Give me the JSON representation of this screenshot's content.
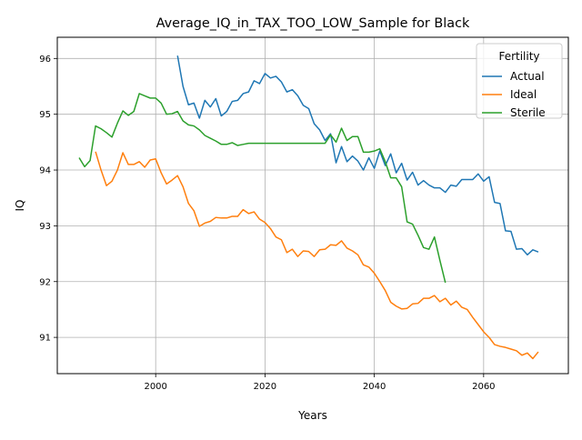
{
  "chart_data": {
    "type": "line",
    "title": "Average_IQ_in_TAX_TOO_LOW_Sample for Black",
    "xlabel": "Years",
    "ylabel": "IQ",
    "xlim": [
      1982,
      2075.5
    ],
    "ylim": [
      90.35,
      96.38
    ],
    "x_ticks": [
      2000,
      2020,
      2040,
      2060
    ],
    "y_ticks": [
      91,
      92,
      93,
      94,
      95,
      96
    ],
    "grid": true,
    "legend": {
      "title": "Fertility",
      "placement": "top-right"
    },
    "series": [
      {
        "name": "Actual",
        "color": "#1f77b4",
        "points": [
          [
            2004,
            96.05
          ],
          [
            2005,
            95.5
          ],
          [
            2006,
            95.17
          ],
          [
            2007,
            95.2
          ],
          [
            2008,
            94.93
          ],
          [
            2009,
            95.25
          ],
          [
            2010,
            95.13
          ],
          [
            2011,
            95.28
          ],
          [
            2012,
            94.97
          ],
          [
            2013,
            95.05
          ],
          [
            2014,
            95.23
          ],
          [
            2015,
            95.25
          ],
          [
            2016,
            95.37
          ],
          [
            2017,
            95.4
          ],
          [
            2018,
            95.6
          ],
          [
            2019,
            95.55
          ],
          [
            2020,
            95.73
          ],
          [
            2021,
            95.65
          ],
          [
            2022,
            95.68
          ],
          [
            2023,
            95.58
          ],
          [
            2024,
            95.4
          ],
          [
            2025,
            95.44
          ],
          [
            2026,
            95.33
          ],
          [
            2027,
            95.16
          ],
          [
            2028,
            95.1
          ],
          [
            2029,
            94.83
          ],
          [
            2030,
            94.72
          ],
          [
            2031,
            94.53
          ],
          [
            2032,
            94.65
          ],
          [
            2033,
            94.13
          ],
          [
            2034,
            94.42
          ],
          [
            2035,
            94.15
          ],
          [
            2036,
            94.25
          ],
          [
            2037,
            94.16
          ],
          [
            2038,
            94.0
          ],
          [
            2039,
            94.22
          ],
          [
            2040,
            94.03
          ],
          [
            2041,
            94.34
          ],
          [
            2042,
            94.08
          ],
          [
            2043,
            94.29
          ],
          [
            2044,
            93.95
          ],
          [
            2045,
            94.12
          ],
          [
            2046,
            93.82
          ],
          [
            2047,
            93.96
          ],
          [
            2048,
            93.73
          ],
          [
            2049,
            93.81
          ],
          [
            2050,
            93.73
          ],
          [
            2051,
            93.68
          ],
          [
            2052,
            93.68
          ],
          [
            2053,
            93.6
          ],
          [
            2054,
            93.73
          ],
          [
            2055,
            93.71
          ],
          [
            2056,
            93.83
          ],
          [
            2057,
            93.83
          ],
          [
            2058,
            93.83
          ],
          [
            2059,
            93.93
          ],
          [
            2060,
            93.8
          ],
          [
            2061,
            93.88
          ],
          [
            2062,
            93.42
          ],
          [
            2063,
            93.4
          ],
          [
            2064,
            92.91
          ],
          [
            2065,
            92.9
          ],
          [
            2066,
            92.58
          ],
          [
            2067,
            92.59
          ],
          [
            2068,
            92.48
          ],
          [
            2069,
            92.57
          ],
          [
            2070,
            92.53
          ]
        ]
      },
      {
        "name": "Ideal",
        "color": "#ff7f0e",
        "points": [
          [
            1989,
            94.33
          ],
          [
            1990,
            94.0
          ],
          [
            1991,
            93.72
          ],
          [
            1992,
            93.8
          ],
          [
            1993,
            94.0
          ],
          [
            1994,
            94.31
          ],
          [
            1995,
            94.1
          ],
          [
            1996,
            94.1
          ],
          [
            1997,
            94.15
          ],
          [
            1998,
            94.05
          ],
          [
            1999,
            94.18
          ],
          [
            2000,
            94.2
          ],
          [
            2001,
            93.95
          ],
          [
            2002,
            93.75
          ],
          [
            2003,
            93.82
          ],
          [
            2004,
            93.9
          ],
          [
            2005,
            93.7
          ],
          [
            2006,
            93.4
          ],
          [
            2007,
            93.27
          ],
          [
            2008,
            92.99
          ],
          [
            2009,
            93.05
          ],
          [
            2010,
            93.08
          ],
          [
            2011,
            93.15
          ],
          [
            2012,
            93.14
          ],
          [
            2013,
            93.14
          ],
          [
            2014,
            93.17
          ],
          [
            2015,
            93.17
          ],
          [
            2016,
            93.29
          ],
          [
            2017,
            93.22
          ],
          [
            2018,
            93.25
          ],
          [
            2019,
            93.12
          ],
          [
            2020,
            93.06
          ],
          [
            2021,
            92.95
          ],
          [
            2022,
            92.8
          ],
          [
            2023,
            92.75
          ],
          [
            2024,
            92.52
          ],
          [
            2025,
            92.58
          ],
          [
            2026,
            92.45
          ],
          [
            2027,
            92.55
          ],
          [
            2028,
            92.54
          ],
          [
            2029,
            92.45
          ],
          [
            2030,
            92.57
          ],
          [
            2031,
            92.58
          ],
          [
            2032,
            92.66
          ],
          [
            2033,
            92.65
          ],
          [
            2034,
            92.73
          ],
          [
            2035,
            92.6
          ],
          [
            2036,
            92.55
          ],
          [
            2037,
            92.48
          ],
          [
            2038,
            92.3
          ],
          [
            2039,
            92.26
          ],
          [
            2040,
            92.15
          ],
          [
            2041,
            92.0
          ],
          [
            2042,
            91.84
          ],
          [
            2043,
            91.63
          ],
          [
            2044,
            91.56
          ],
          [
            2045,
            91.51
          ],
          [
            2046,
            91.52
          ],
          [
            2047,
            91.6
          ],
          [
            2048,
            91.61
          ],
          [
            2049,
            91.7
          ],
          [
            2050,
            91.7
          ],
          [
            2051,
            91.75
          ],
          [
            2052,
            91.64
          ],
          [
            2053,
            91.7
          ],
          [
            2054,
            91.58
          ],
          [
            2055,
            91.65
          ],
          [
            2056,
            91.54
          ],
          [
            2057,
            91.5
          ],
          [
            2058,
            91.36
          ],
          [
            2059,
            91.23
          ],
          [
            2060,
            91.1
          ],
          [
            2061,
            91.0
          ],
          [
            2062,
            90.87
          ],
          [
            2063,
            90.84
          ],
          [
            2064,
            90.82
          ],
          [
            2065,
            90.79
          ],
          [
            2066,
            90.76
          ],
          [
            2067,
            90.68
          ],
          [
            2068,
            90.72
          ],
          [
            2069,
            90.62
          ],
          [
            2070,
            90.74
          ]
        ]
      },
      {
        "name": "Sterile",
        "color": "#2ca02c",
        "points": [
          [
            1986,
            94.22
          ],
          [
            1987,
            94.06
          ],
          [
            1988,
            94.17
          ],
          [
            1989,
            94.79
          ],
          [
            1990,
            94.74
          ],
          [
            1991,
            94.67
          ],
          [
            1992,
            94.59
          ],
          [
            1993,
            94.84
          ],
          [
            1994,
            95.06
          ],
          [
            1995,
            94.98
          ],
          [
            1996,
            95.05
          ],
          [
            1997,
            95.37
          ],
          [
            1998,
            95.33
          ],
          [
            1999,
            95.29
          ],
          [
            2000,
            95.29
          ],
          [
            2001,
            95.2
          ],
          [
            2002,
            95.0
          ],
          [
            2003,
            95.01
          ],
          [
            2004,
            95.05
          ],
          [
            2005,
            94.88
          ],
          [
            2006,
            94.81
          ],
          [
            2007,
            94.79
          ],
          [
            2008,
            94.72
          ],
          [
            2009,
            94.62
          ],
          [
            2010,
            94.57
          ],
          [
            2011,
            94.52
          ],
          [
            2012,
            94.46
          ],
          [
            2013,
            94.46
          ],
          [
            2014,
            94.49
          ],
          [
            2015,
            94.44
          ],
          [
            2016,
            94.46
          ],
          [
            2017,
            94.48
          ],
          [
            2018,
            94.48
          ],
          [
            2019,
            94.48
          ],
          [
            2020,
            94.48
          ],
          [
            2021,
            94.48
          ],
          [
            2022,
            94.48
          ],
          [
            2023,
            94.48
          ],
          [
            2024,
            94.48
          ],
          [
            2025,
            94.48
          ],
          [
            2026,
            94.48
          ],
          [
            2027,
            94.48
          ],
          [
            2028,
            94.48
          ],
          [
            2029,
            94.48
          ],
          [
            2030,
            94.48
          ],
          [
            2031,
            94.48
          ],
          [
            2032,
            94.63
          ],
          [
            2033,
            94.5
          ],
          [
            2034,
            94.75
          ],
          [
            2035,
            94.53
          ],
          [
            2036,
            94.6
          ],
          [
            2037,
            94.6
          ],
          [
            2038,
            94.32
          ],
          [
            2039,
            94.32
          ],
          [
            2040,
            94.34
          ],
          [
            2041,
            94.38
          ],
          [
            2042,
            94.15
          ],
          [
            2043,
            93.86
          ],
          [
            2044,
            93.86
          ],
          [
            2045,
            93.7
          ],
          [
            2046,
            93.07
          ],
          [
            2047,
            93.03
          ],
          [
            2048,
            92.83
          ],
          [
            2049,
            92.61
          ],
          [
            2050,
            92.58
          ],
          [
            2051,
            92.8
          ],
          [
            2052,
            92.38
          ],
          [
            2053,
            91.98
          ]
        ]
      }
    ]
  }
}
